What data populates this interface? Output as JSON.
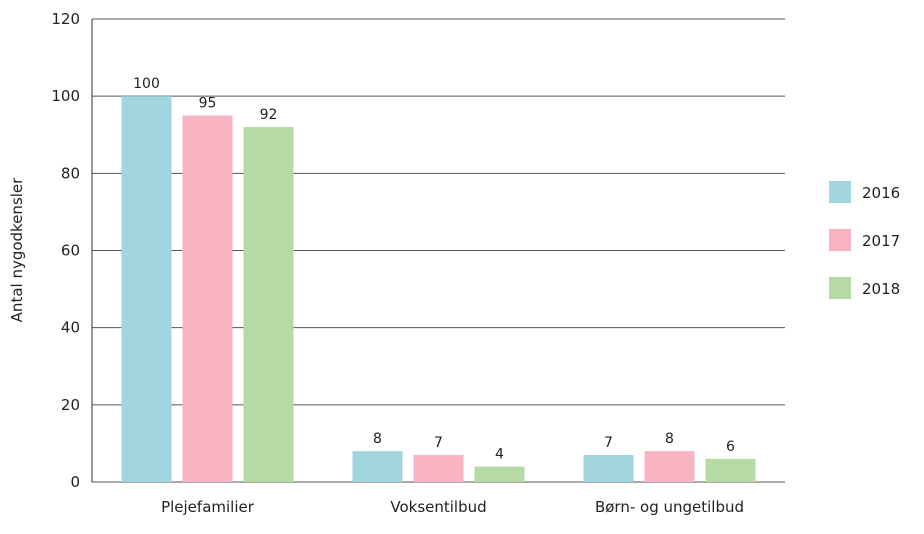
{
  "chart_data": {
    "type": "bar",
    "y_label": "Antal nygodkensler",
    "categories": [
      "Plejefamilier",
      "Voksentilbud",
      "Børn- og ungetilbud"
    ],
    "series": [
      {
        "name": "2016",
        "color": "#a2d6df",
        "values": [
          100,
          8,
          7
        ]
      },
      {
        "name": "2017",
        "color": "#f8b4c3",
        "values": [
          95,
          7,
          8
        ]
      },
      {
        "name": "2018",
        "color": "#b6daa4",
        "values": [
          92,
          4,
          6
        ]
      }
    ],
    "ylim": [
      0,
      120
    ],
    "yticks": [
      0,
      20,
      40,
      60,
      80,
      100,
      120
    ],
    "grid": true,
    "legend": "right"
  }
}
